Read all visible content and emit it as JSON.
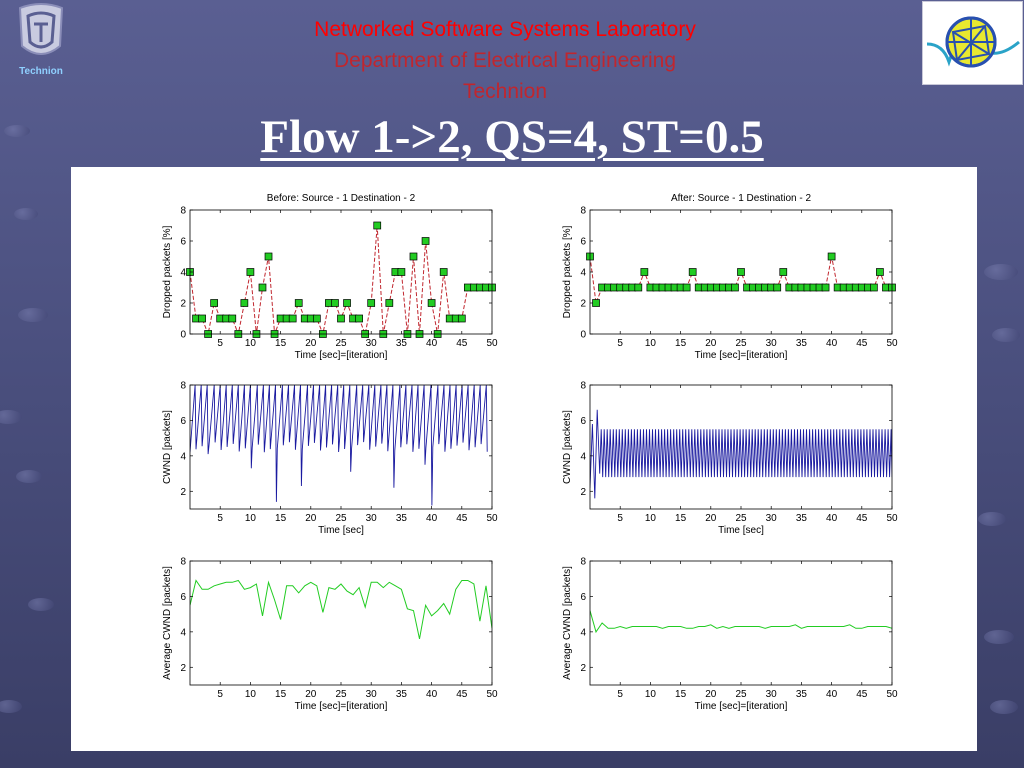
{
  "header": {
    "lab": "Networked Software Systems Laboratory",
    "department": "Department of Electrical Engineering",
    "institution": "Technion",
    "title": "Flow 1->2, QS=4, ST=0.5",
    "logo_left_text": "Technion"
  },
  "colors": {
    "background": "#4e5385",
    "lab_text": "#ff0000",
    "dept_text": "#c0262e",
    "dropped_line": "#c0262e",
    "dropped_marker": "#22cc22",
    "cwnd_line": "#1a1aa0",
    "avg_line": "#22cc22"
  },
  "chart_data": [
    {
      "id": "before-dropped",
      "type": "line",
      "title": "Before: Source - 1 Destination - 2",
      "xlabel": "Time [sec]=[iteration]",
      "ylabel": "Dropped packets [%]",
      "xlim": [
        0,
        50
      ],
      "ylim": [
        0,
        8
      ],
      "xticks": [
        5,
        10,
        15,
        20,
        25,
        30,
        35,
        40,
        45,
        50
      ],
      "yticks": [
        0,
        2,
        4,
        6,
        8
      ],
      "markers": true,
      "x": [
        0,
        1,
        2,
        3,
        4,
        5,
        6,
        7,
        8,
        9,
        10,
        11,
        12,
        13,
        14,
        15,
        16,
        17,
        18,
        19,
        20,
        21,
        22,
        23,
        24,
        25,
        26,
        27,
        28,
        29,
        30,
        31,
        32,
        33,
        34,
        35,
        36,
        37,
        38,
        39,
        40,
        41,
        42,
        43,
        44,
        45,
        46,
        47,
        48,
        49,
        50
      ],
      "values": [
        4,
        1,
        1,
        0,
        2,
        1,
        1,
        1,
        0,
        2,
        4,
        0,
        3,
        5,
        0,
        1,
        1,
        1,
        2,
        1,
        1,
        1,
        0,
        2,
        2,
        1,
        2,
        1,
        1,
        0,
        2,
        7,
        0,
        2,
        4,
        4,
        0,
        5,
        0,
        6,
        2,
        0,
        4,
        1,
        1,
        1,
        3,
        3,
        3,
        3,
        3
      ]
    },
    {
      "id": "after-dropped",
      "type": "line",
      "title": "After: Source - 1 Destination - 2",
      "xlabel": "Time [sec]=[iteration]",
      "ylabel": "Dropped packets [%]",
      "xlim": [
        0,
        50
      ],
      "ylim": [
        0,
        8
      ],
      "xticks": [
        5,
        10,
        15,
        20,
        25,
        30,
        35,
        40,
        45,
        50
      ],
      "yticks": [
        0,
        2,
        4,
        6,
        8
      ],
      "markers": true,
      "x": [
        0,
        1,
        2,
        3,
        4,
        5,
        6,
        7,
        8,
        9,
        10,
        11,
        12,
        13,
        14,
        15,
        16,
        17,
        18,
        19,
        20,
        21,
        22,
        23,
        24,
        25,
        26,
        27,
        28,
        29,
        30,
        31,
        32,
        33,
        34,
        35,
        36,
        37,
        38,
        39,
        40,
        41,
        42,
        43,
        44,
        45,
        46,
        47,
        48,
        49,
        50
      ],
      "values": [
        5,
        2,
        3,
        3,
        3,
        3,
        3,
        3,
        3,
        4,
        3,
        3,
        3,
        3,
        3,
        3,
        3,
        4,
        3,
        3,
        3,
        3,
        3,
        3,
        3,
        4,
        3,
        3,
        3,
        3,
        3,
        3,
        4,
        3,
        3,
        3,
        3,
        3,
        3,
        3,
        5,
        3,
        3,
        3,
        3,
        3,
        3,
        3,
        4,
        3,
        3
      ]
    },
    {
      "id": "before-cwnd",
      "type": "line",
      "title": "",
      "xlabel": "Time [sec]",
      "ylabel": "CWND [packets]",
      "xlim": [
        0,
        50
      ],
      "ylim": [
        1,
        8
      ],
      "xticks": [
        5,
        10,
        15,
        20,
        25,
        30,
        35,
        40,
        45,
        50
      ],
      "yticks": [
        2,
        4,
        6,
        8
      ],
      "pattern": "sawtooth",
      "cycle": 1.0,
      "low": 4.2,
      "high": 8.0,
      "dips": [
        [
          3,
          4.1
        ],
        [
          10,
          3.3
        ],
        [
          14,
          1.4
        ],
        [
          17.5,
          2.3
        ],
        [
          26,
          3.1
        ],
        [
          33,
          2.2
        ],
        [
          38.5,
          3.5
        ],
        [
          39.5,
          1.2
        ],
        [
          49.5,
          3.2
        ]
      ]
    },
    {
      "id": "after-cwnd",
      "type": "line",
      "title": "",
      "xlabel": "Time [sec]",
      "ylabel": "CWND [packets]",
      "xlim": [
        0,
        50
      ],
      "ylim": [
        1,
        8
      ],
      "xticks": [
        5,
        10,
        15,
        20,
        25,
        30,
        35,
        40,
        45,
        50
      ],
      "yticks": [
        2,
        4,
        6,
        8
      ],
      "pattern": "oscillation",
      "cycle": 0.5,
      "low": 2.8,
      "high": 5.5,
      "start": [
        [
          0,
          2.2
        ],
        [
          0.4,
          5.8
        ],
        [
          0.8,
          1.6
        ],
        [
          1.2,
          6.6
        ],
        [
          1.6,
          3.0
        ]
      ]
    },
    {
      "id": "before-avg",
      "type": "line",
      "title": "",
      "xlabel": "Time [sec]=[iteration]",
      "ylabel": "Average CWND [packets]",
      "xlim": [
        0,
        50
      ],
      "ylim": [
        1,
        8
      ],
      "xticks": [
        5,
        10,
        15,
        20,
        25,
        30,
        35,
        40,
        45,
        50
      ],
      "yticks": [
        2,
        4,
        6,
        8
      ],
      "x": [
        0,
        1,
        2,
        3,
        4,
        5,
        6,
        7,
        8,
        9,
        10,
        11,
        12,
        13,
        14,
        15,
        16,
        17,
        18,
        19,
        20,
        21,
        22,
        23,
        24,
        25,
        26,
        27,
        28,
        29,
        30,
        31,
        32,
        33,
        34,
        35,
        36,
        37,
        38,
        39,
        40,
        41,
        42,
        43,
        44,
        45,
        46,
        47,
        48,
        49,
        50
      ],
      "values": [
        5.5,
        6.9,
        6.4,
        6.4,
        6.6,
        6.7,
        6.8,
        6.8,
        6.9,
        6.4,
        6.5,
        6.7,
        4.9,
        6.8,
        5.8,
        4.7,
        6.6,
        6.6,
        6.2,
        6.6,
        6.8,
        6.6,
        5.1,
        6.5,
        6.4,
        6.7,
        6.3,
        6.1,
        6.5,
        5.4,
        6.8,
        6.8,
        6.5,
        6.8,
        6.6,
        6.4,
        5.3,
        5.2,
        3.6,
        5.5,
        4.9,
        5.2,
        5.6,
        5.0,
        6.4,
        6.9,
        6.9,
        6.7,
        4.6,
        6.6,
        4.2
      ]
    },
    {
      "id": "after-avg",
      "type": "line",
      "title": "",
      "xlabel": "Time [sec]=[iteration]",
      "ylabel": "Average CWND [packets]",
      "xlim": [
        0,
        50
      ],
      "ylim": [
        1,
        8
      ],
      "xticks": [
        5,
        10,
        15,
        20,
        25,
        30,
        35,
        40,
        45,
        50
      ],
      "yticks": [
        2,
        4,
        6,
        8
      ],
      "x": [
        0,
        1,
        2,
        3,
        4,
        5,
        6,
        7,
        8,
        9,
        10,
        11,
        12,
        13,
        14,
        15,
        16,
        17,
        18,
        19,
        20,
        21,
        22,
        23,
        24,
        25,
        26,
        27,
        28,
        29,
        30,
        31,
        32,
        33,
        34,
        35,
        36,
        37,
        38,
        39,
        40,
        41,
        42,
        43,
        44,
        45,
        46,
        47,
        48,
        49,
        50
      ],
      "values": [
        5.2,
        4.0,
        4.5,
        4.2,
        4.2,
        4.3,
        4.2,
        4.3,
        4.3,
        4.3,
        4.3,
        4.3,
        4.2,
        4.3,
        4.3,
        4.3,
        4.2,
        4.2,
        4.3,
        4.3,
        4.4,
        4.2,
        4.3,
        4.2,
        4.3,
        4.3,
        4.3,
        4.3,
        4.3,
        4.2,
        4.3,
        4.3,
        4.3,
        4.3,
        4.4,
        4.2,
        4.3,
        4.3,
        4.3,
        4.3,
        4.3,
        4.3,
        4.3,
        4.4,
        4.2,
        4.2,
        4.3,
        4.3,
        4.3,
        4.3,
        4.2
      ]
    }
  ]
}
